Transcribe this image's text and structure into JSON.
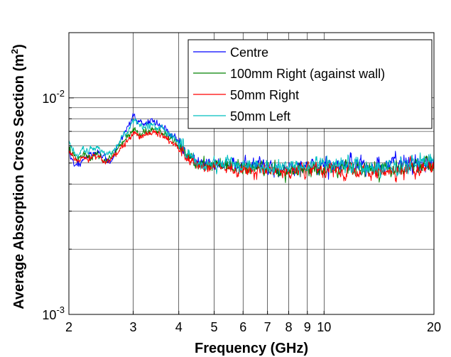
{
  "chart_data": {
    "type": "line",
    "xlabel": "Frequency (GHz)",
    "ylabel_main": "Average Absorption Cross Section (m",
    "ylabel_sup": "2",
    "ylabel_end": ")",
    "x_scale": "log",
    "y_scale": "log",
    "xlim": [
      2,
      20
    ],
    "ylim": [
      0.001,
      0.02
    ],
    "grid": true,
    "legend_position": "top-right",
    "x_ticks": [
      {
        "value": 2,
        "label": "2"
      },
      {
        "value": 3,
        "label": "3"
      },
      {
        "value": 4,
        "label": "4"
      },
      {
        "value": 5,
        "label": "5"
      },
      {
        "value": 6,
        "label": "6"
      },
      {
        "value": 7,
        "label": "7"
      },
      {
        "value": 8,
        "label": "8"
      },
      {
        "value": 9,
        "label": "9"
      },
      {
        "value": 10,
        "label": "10"
      },
      {
        "value": 20,
        "label": "20"
      }
    ],
    "y_major_ticks": [
      {
        "value": 0.001,
        "base": "10",
        "exp": "-3"
      },
      {
        "value": 0.01,
        "base": "10",
        "exp": "-2"
      }
    ],
    "y_minor_ticks": [
      0.002,
      0.003,
      0.004,
      0.005,
      0.006,
      0.007,
      0.008,
      0.009,
      0.02
    ],
    "x_keypoints": [
      2,
      2.1,
      2.2,
      2.3,
      2.4,
      2.5,
      2.6,
      2.7,
      2.8,
      2.9,
      3.0,
      3.2,
      3.4,
      3.6,
      3.8,
      4.0,
      4.3,
      4.6,
      5.0,
      5.5,
      6.0,
      7.0,
      8.0,
      9.0,
      10.0,
      12.0,
      14.0,
      16.0,
      18.0,
      20.0
    ],
    "series": [
      {
        "name": "Centre",
        "color": "#0000ff",
        "values": [
          0.0056,
          0.0048,
          0.0052,
          0.0055,
          0.0056,
          0.0053,
          0.005,
          0.0058,
          0.0066,
          0.0072,
          0.0082,
          0.0075,
          0.0078,
          0.0074,
          0.0069,
          0.0062,
          0.0053,
          0.005,
          0.005,
          0.0049,
          0.0049,
          0.0048,
          0.0047,
          0.0048,
          0.0048,
          0.0049,
          0.0048,
          0.0049,
          0.005,
          0.0052
        ]
      },
      {
        "name": "100mm Right (against wall)",
        "color": "#008000",
        "values": [
          0.0058,
          0.0052,
          0.0055,
          0.0053,
          0.0055,
          0.005,
          0.0054,
          0.0057,
          0.0062,
          0.0066,
          0.007,
          0.0068,
          0.0071,
          0.0069,
          0.0065,
          0.006,
          0.0052,
          0.0049,
          0.005,
          0.0048,
          0.0047,
          0.0047,
          0.0046,
          0.0047,
          0.0047,
          0.0047,
          0.0046,
          0.0047,
          0.0048,
          0.005
        ]
      },
      {
        "name": "50mm Right",
        "color": "#ff0000",
        "values": [
          0.0057,
          0.005,
          0.0053,
          0.0052,
          0.0054,
          0.0051,
          0.0052,
          0.0056,
          0.006,
          0.0064,
          0.0068,
          0.0066,
          0.0069,
          0.0067,
          0.0063,
          0.0059,
          0.0052,
          0.0048,
          0.0049,
          0.0047,
          0.0047,
          0.0046,
          0.0046,
          0.0046,
          0.0046,
          0.0046,
          0.0045,
          0.0046,
          0.0046,
          0.0047
        ]
      },
      {
        "name": "50mm Left",
        "color": "#00bfbf",
        "values": [
          0.0061,
          0.0054,
          0.0057,
          0.0058,
          0.0058,
          0.0055,
          0.0055,
          0.006,
          0.0066,
          0.007,
          0.0078,
          0.0073,
          0.0075,
          0.0072,
          0.0067,
          0.0062,
          0.0054,
          0.005,
          0.0051,
          0.0049,
          0.0049,
          0.0048,
          0.0048,
          0.0048,
          0.0049,
          0.0049,
          0.0048,
          0.0049,
          0.005,
          0.0052
        ]
      }
    ]
  }
}
